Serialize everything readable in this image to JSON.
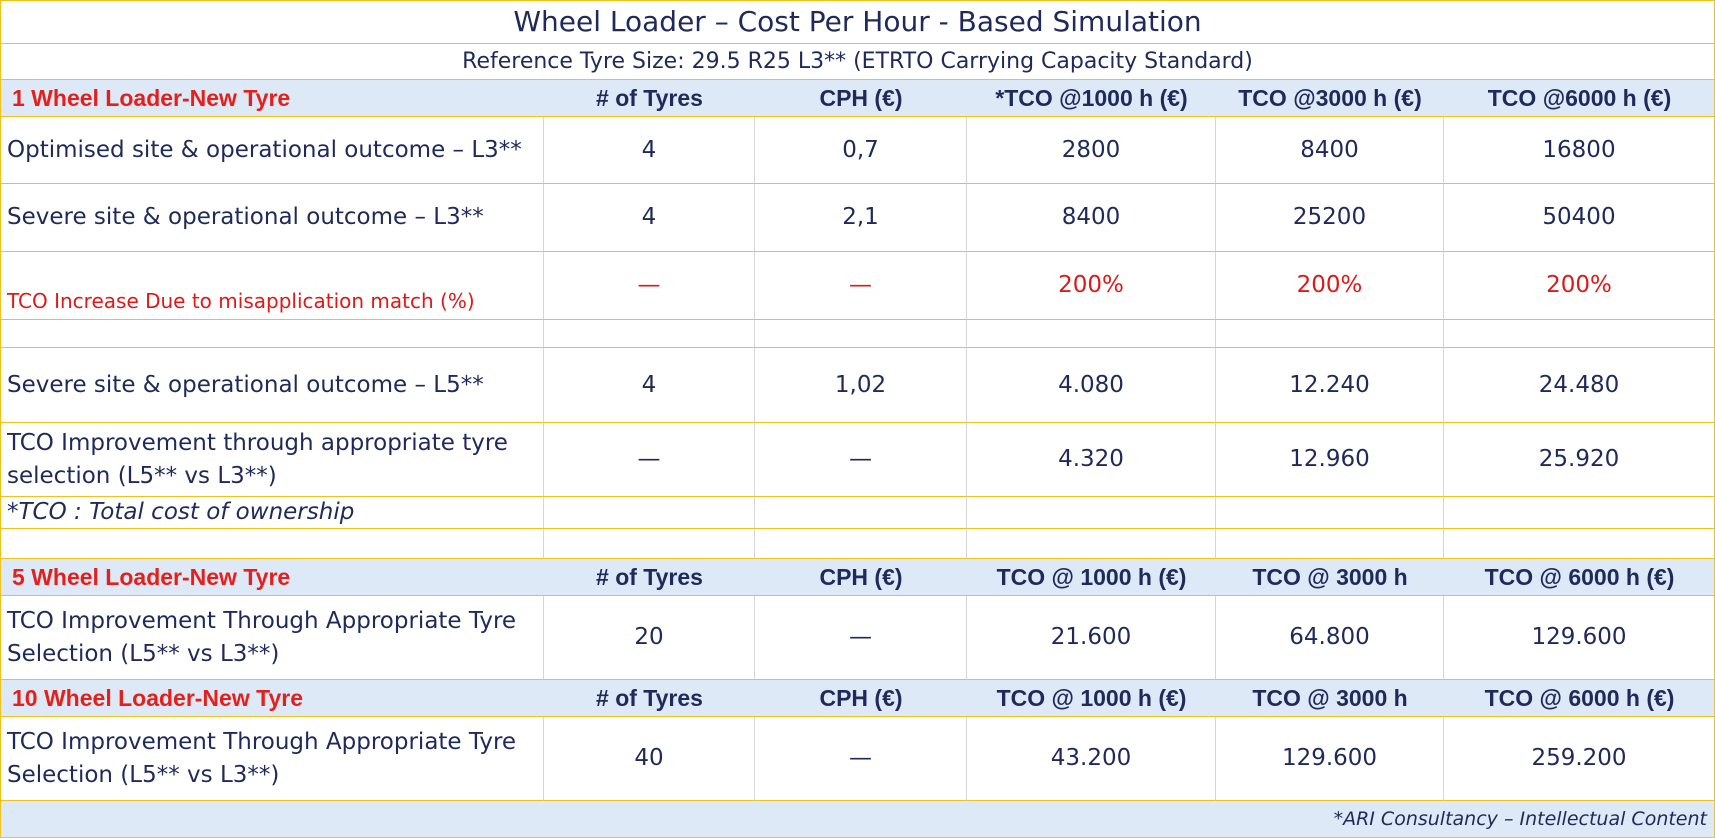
{
  "header": {
    "title": "Wheel Loader – Cost Per Hour - Based Simulation",
    "subtitle": "Reference Tyre Size: 29.5 R25 L3** (ETRTO Carrying Capacity Standard)"
  },
  "table": {
    "rows": [
      [
        "1 Wheel Loader-New Tyre",
        "# of Tyres",
        "CPH (€)",
        "*TCO @1000 h (€)",
        "TCO @3000 h (€)",
        "TCO @6000 h (€)"
      ],
      [
        "Optimised site & operational outcome – L3**",
        "4",
        "0,7",
        "2800",
        "8400",
        "16800"
      ],
      [
        "Severe site & operational outcome – L3**",
        "4",
        "2,1",
        "8400",
        "25200",
        "50400"
      ],
      [
        "TCO Increase Due to misapplication match (%)",
        "—",
        "—",
        "200%",
        "200%",
        "200%"
      ],
      [
        "Severe site & operational outcome – L5**",
        "4",
        "1,02",
        "4.080",
        "12.240",
        "24.480"
      ],
      [
        "TCO Improvement through appropriate tyre selection (L5** vs L3**)",
        "—",
        "—",
        "4.320",
        "12.960",
        "25.920"
      ],
      [
        "*TCO : Total cost of ownership"
      ],
      [
        "5 Wheel Loader-New Tyre",
        "# of Tyres",
        "CPH (€)",
        "TCO @ 1000 h (€)",
        "TCO @ 3000 h",
        "TCO @ 6000 h (€)"
      ],
      [
        "TCO Improvement Through Appropriate Tyre Selection (L5** vs L3**)",
        "20",
        "—",
        "21.600",
        "64.800",
        "129.600"
      ],
      [
        "10 Wheel Loader-New Tyre",
        "# of Tyres",
        "CPH (€)",
        "TCO @ 1000 h (€)",
        "TCO @ 3000 h",
        "TCO @ 6000 h (€)"
      ],
      [
        "TCO Improvement Through Appropriate Tyre Selection (L5** vs L3**)",
        "40",
        "—",
        "43.200",
        "129.600",
        "259.200"
      ]
    ]
  },
  "footer": "*ARI Consultancy – Intellectual Content"
}
